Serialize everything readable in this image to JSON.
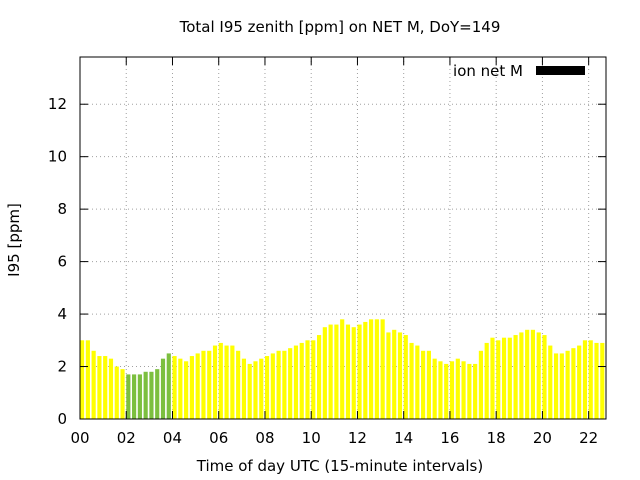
{
  "chart_data": {
    "type": "bar",
    "title": "Total I95 zenith [ppm] on NET M, DoY=149",
    "xlabel": "Time of day UTC (15-minute intervals)",
    "ylabel": "I95 [ppm]",
    "ylim": [
      0,
      13.8
    ],
    "xlim": [
      0,
      22.75
    ],
    "y_ticks": [
      0,
      2,
      4,
      6,
      8,
      10,
      12
    ],
    "x_ticks": [
      0,
      2,
      4,
      6,
      8,
      10,
      12,
      14,
      16,
      18,
      20,
      22
    ],
    "x_tick_labels": [
      "00",
      "02",
      "04",
      "06",
      "08",
      "10",
      "12",
      "14",
      "16",
      "18",
      "20",
      "22"
    ],
    "grid": true,
    "legend": {
      "label": "ion net M",
      "placement": "top-right",
      "color": "#000000"
    },
    "colors": {
      "default": "#ffff00",
      "highlight": "#7cbf3f"
    },
    "bar_width_hours": 0.25,
    "series": [
      {
        "x": [
          0.0,
          0.25,
          0.5,
          0.75,
          1.0,
          1.25,
          1.5,
          1.75,
          2.0,
          2.25,
          2.5,
          2.75,
          3.0,
          3.25,
          3.5,
          3.75,
          4.0,
          4.25,
          4.5,
          4.75,
          5.0,
          5.25,
          5.5,
          5.75,
          6.0,
          6.25,
          6.5,
          6.75,
          7.0,
          7.25,
          7.5,
          7.75,
          8.0,
          8.25,
          8.5,
          8.75,
          9.0,
          9.25,
          9.5,
          9.75,
          10.0,
          10.25,
          10.5,
          10.75,
          11.0,
          11.25,
          11.5,
          11.75,
          12.0,
          12.25,
          12.5,
          12.75,
          13.0,
          13.25,
          13.5,
          13.75,
          14.0,
          14.25,
          14.5,
          14.75,
          15.0,
          15.25,
          15.5,
          15.75,
          16.0,
          16.25,
          16.5,
          16.75,
          17.0,
          17.25,
          17.5,
          17.75,
          18.0,
          18.25,
          18.5,
          18.75,
          19.0,
          19.25,
          19.5,
          19.75,
          20.0,
          20.25,
          20.5,
          20.75,
          21.0,
          21.25,
          21.5,
          21.75,
          22.0,
          22.25,
          22.5
        ],
        "values": [
          3.0,
          3.0,
          2.6,
          2.4,
          2.4,
          2.3,
          2.0,
          1.9,
          1.7,
          1.7,
          1.7,
          1.8,
          1.8,
          1.9,
          2.3,
          2.5,
          2.4,
          2.3,
          2.2,
          2.4,
          2.5,
          2.6,
          2.6,
          2.8,
          2.9,
          2.8,
          2.8,
          2.6,
          2.3,
          2.1,
          2.2,
          2.3,
          2.4,
          2.5,
          2.6,
          2.6,
          2.7,
          2.8,
          2.9,
          3.0,
          3.0,
          3.2,
          3.5,
          3.6,
          3.6,
          3.8,
          3.6,
          3.5,
          3.6,
          3.7,
          3.8,
          3.8,
          3.8,
          3.3,
          3.4,
          3.3,
          3.2,
          2.9,
          2.8,
          2.6,
          2.6,
          2.3,
          2.2,
          2.1,
          2.2,
          2.3,
          2.2,
          2.1,
          2.1,
          2.6,
          2.9,
          3.1,
          3.0,
          3.1,
          3.1,
          3.2,
          3.3,
          3.4,
          3.4,
          3.3,
          3.2,
          2.8,
          2.5,
          2.5,
          2.6,
          2.7,
          2.8,
          3.0,
          3.0,
          2.9,
          2.9
        ],
        "highlight_indices": [
          8,
          9,
          10,
          11,
          12,
          13,
          14,
          15
        ]
      }
    ]
  }
}
